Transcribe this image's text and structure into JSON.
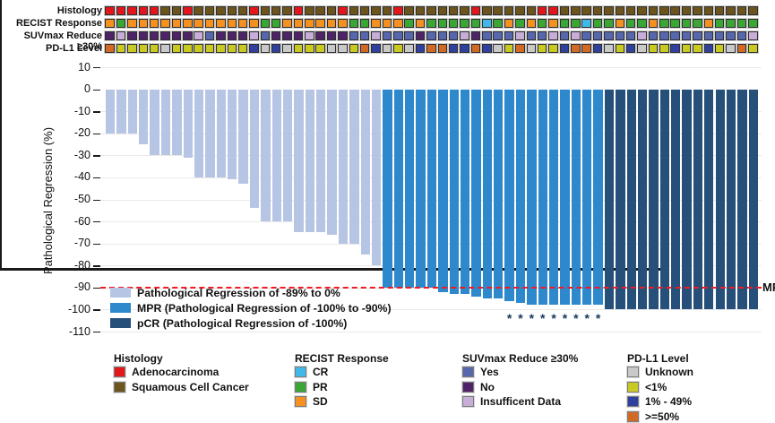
{
  "colors": {
    "adenocarcinoma": "#E3171B",
    "squamous": "#6C541C",
    "recist_cr": "#41B9E8",
    "recist_pr": "#3AA634",
    "recist_sd": "#F59120",
    "suv_yes": "#5667AE",
    "suv_no": "#4F2368",
    "suv_insufficient": "#C7ADD8",
    "pdl1_unknown": "#C9C9C9",
    "pdl1_lt1": "#C8CA21",
    "pdl1_1_49": "#30409F",
    "pdl1_ge50": "#D26A26",
    "bar_light": "#B7C5E5",
    "bar_mpr": "#2E88CC",
    "bar_pcr": "#264F79",
    "mpr_line": "#EE1C25"
  },
  "y_axis": {
    "title": "Pathological Regression (%)"
  },
  "mpr_marker": {
    "label": "MPR",
    "value": -90
  },
  "asterisk_char": "*",
  "plot_legend": [
    {
      "color_key": "bar_light",
      "label": "Pathological Regression of -89% to 0%"
    },
    {
      "color_key": "bar_mpr",
      "label": "MPR (Pathological Regression of -100% to -90%)"
    },
    {
      "color_key": "bar_pcr",
      "label": "pCR (Pathological Regression of -100%)"
    }
  ],
  "annotation_rows": [
    {
      "id": "histology",
      "label": "Histology",
      "palette": {
        "A": "adenocarcinoma",
        "S": "squamous"
      },
      "codes": "AAAAASSASSSSSASSSASSSASSSSASSSSSSASSSSSAASSSSSSSSSSSSSSSSSS"
    },
    {
      "id": "recist",
      "label": "RECIST Response",
      "palette": {
        "C": "recist_cr",
        "P": "recist_pr",
        "D": "recist_sd"
      },
      "codes": "DPDDDDDDDDDDDDPPDDDDDDPPDDDPDPPPPPCPDPDPDPPCPPDPPDPPPPDPPPP"
    },
    {
      "id": "suvmax",
      "label": "SUVmax Reduce ≥30%",
      "palette": {
        "Y": "suv_yes",
        "N": "suv_no",
        "I": "suv_insufficient"
      },
      "codes": "NINNNNNNIYNNNIYNNNINNNYYIYYYNYYYINYYYIYYIYIYYYYYIYYYYYYYYYI"
    },
    {
      "id": "pdl1",
      "label": "PD-L1 Level",
      "palette": {
        "U": "pdl1_unknown",
        "L": "pdl1_lt1",
        "M": "pdl1_1_49",
        "H": "pdl1_ge50"
      },
      "codes": "HLLLLULLLLLLLMUMULLLUULHMULUMHHMMHMULHULLMHHMULMULLMLLMLUHL"
    }
  ],
  "chart_data": {
    "type": "bar",
    "title": "",
    "xlabel": "",
    "ylabel": "Pathological Regression (%)",
    "ylim": [
      -110,
      10
    ],
    "yticks": [
      10,
      0,
      -10,
      -20,
      -30,
      -40,
      -50,
      -60,
      -70,
      -80,
      -90,
      -100,
      -110
    ],
    "grid": "horizontal",
    "mpr_reference_line": -90,
    "values": [
      -20,
      -20,
      -20,
      -25,
      -30,
      -30,
      -30,
      -31,
      -40,
      -40,
      -40,
      -41,
      -43,
      -54,
      -60,
      -60,
      -60,
      -65,
      -65,
      -65,
      -66,
      -70,
      -70,
      -75,
      -80,
      -90,
      -90,
      -90,
      -90,
      -90,
      -92,
      -93,
      -93,
      -94,
      -95,
      -95,
      -96,
      -97,
      -98,
      -98,
      -98,
      -98,
      -98,
      -98,
      -98,
      -100,
      -100,
      -100,
      -100,
      -100,
      -100,
      -100,
      -100,
      -100,
      -100,
      -100,
      -100,
      -100,
      -100
    ],
    "group_rule": {
      "bar_light": "0 to -89",
      "bar_mpr": "-90 to > -100",
      "bar_pcr": "-100"
    },
    "asterisk_bar_indices": [
      37,
      38,
      39,
      40,
      41,
      42,
      43,
      44,
      45
    ]
  },
  "bottom_legend": [
    {
      "title": "Histology",
      "items": [
        {
          "label": "Adenocarcinoma",
          "color_key": "adenocarcinoma"
        },
        {
          "label": "Squamous Cell Cancer",
          "color_key": "squamous"
        }
      ]
    },
    {
      "title": "RECIST Response",
      "items": [
        {
          "label": "CR",
          "color_key": "recist_cr"
        },
        {
          "label": "PR",
          "color_key": "recist_pr"
        },
        {
          "label": "SD",
          "color_key": "recist_sd"
        }
      ]
    },
    {
      "title": "SUVmax Reduce ≥30%",
      "items": [
        {
          "label": "Yes",
          "color_key": "suv_yes"
        },
        {
          "label": "No",
          "color_key": "suv_no"
        },
        {
          "label": "Insufficent Data",
          "color_key": "suv_insufficient"
        }
      ]
    },
    {
      "title": "PD-L1 Level",
      "items": [
        {
          "label": "Unknown",
          "color_key": "pdl1_unknown"
        },
        {
          "label": "<1%",
          "color_key": "pdl1_lt1"
        },
        {
          "label": "1% - 49%",
          "color_key": "pdl1_1_49"
        },
        {
          "label": ">=50%",
          "color_key": "pdl1_ge50"
        }
      ]
    }
  ]
}
